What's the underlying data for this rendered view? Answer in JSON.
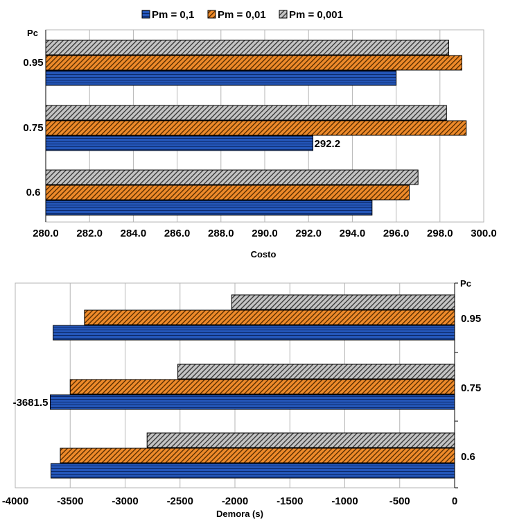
{
  "legend": {
    "items": [
      {
        "label": "Pm = 0,1",
        "color": "#2456b8",
        "pattern": "horizontal"
      },
      {
        "label": "Pm = 0,01",
        "color": "#ee8a2a",
        "pattern": "diagonal"
      },
      {
        "label": "Pm = 0,001",
        "color": "#bdbdbd",
        "pattern": "diagonal"
      }
    ]
  },
  "chart_data": [
    {
      "type": "bar",
      "orientation": "horizontal",
      "categories": [
        "0.6",
        "0.75",
        "0.95"
      ],
      "category_title": "Pc",
      "series": [
        {
          "name": "Pm = 0,1",
          "values": [
            294.9,
            292.2,
            296.0
          ]
        },
        {
          "name": "Pm = 0,01",
          "values": [
            296.6,
            299.2,
            299.0
          ]
        },
        {
          "name": "Pm = 0,001",
          "values": [
            297.0,
            298.3,
            298.4
          ]
        }
      ],
      "xlabel": "Costo",
      "xlim": [
        280.0,
        300.0
      ],
      "xticks": [
        "280.0",
        "282.0",
        "284.0",
        "286.0",
        "288.0",
        "290.0",
        "292.0",
        "294.0",
        "296.0",
        "298.0",
        "300.0"
      ],
      "annotations": [
        {
          "category": "0.75",
          "series": "Pm = 0,1",
          "text": "292.2"
        }
      ],
      "grid": true,
      "legend_position": "top"
    },
    {
      "type": "bar",
      "orientation": "horizontal",
      "categories": [
        "0.6",
        "0.75",
        "0.95"
      ],
      "category_title": "Pc",
      "series": [
        {
          "name": "Pm = 0,1",
          "values": [
            -3675,
            -3681.5,
            -3655
          ]
        },
        {
          "name": "Pm = 0,01",
          "values": [
            -3590,
            -3500,
            -3370
          ]
        },
        {
          "name": "Pm = 0,001",
          "values": [
            -2800,
            -2520,
            -2030
          ]
        }
      ],
      "xlabel": "Demora (s)",
      "xlim": [
        -4000,
        0
      ],
      "xticks": [
        "-4000",
        "-3500",
        "-3000",
        "-2500",
        "-2000",
        "-1500",
        "-1000",
        "-500",
        "0"
      ],
      "annotations": [
        {
          "category": "0.75",
          "series": "Pm = 0,1",
          "text": "-3681.5"
        }
      ],
      "grid": true
    }
  ]
}
